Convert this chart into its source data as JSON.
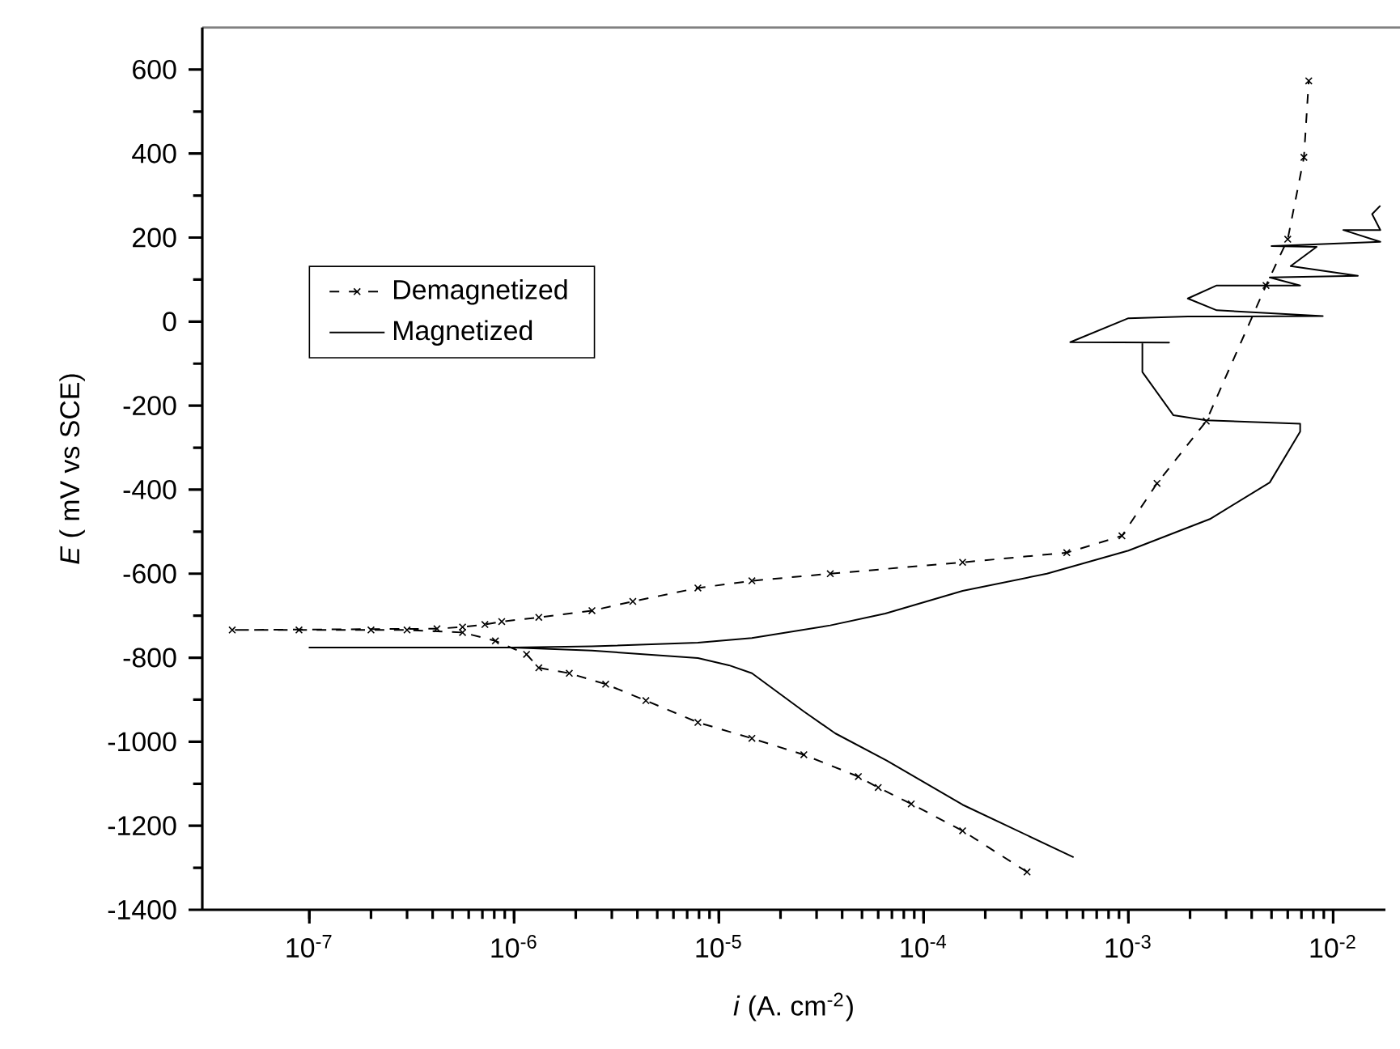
{
  "chart_data": {
    "type": "line",
    "xlabel": "*i* (A. cm$^{-2}$)",
    "ylabel": "*E* ( mV vs SCE)",
    "log": "x",
    "xlim": [
      3e-08,
      0.018
    ],
    "ylim": [
      -1400,
      700
    ],
    "xticks": [
      {
        "value": 1e-07,
        "label": "10$^{-7}$"
      },
      {
        "value": 1e-06,
        "label": "10$^{-6}$"
      },
      {
        "value": 1e-05,
        "label": "10$^{-5}$"
      },
      {
        "value": 0.0001,
        "label": "10$^{-4}$"
      },
      {
        "value": 0.001,
        "label": "10$^{-3}$"
      },
      {
        "value": 0.01,
        "label": "10$^{-2}$"
      }
    ],
    "yticks": [
      -1400,
      -1200,
      -1000,
      -800,
      -600,
      -400,
      -200,
      0,
      200,
      400,
      600
    ],
    "grid": false,
    "legend": "top left",
    "series": [
      {
        "name": "Demagnetized",
        "color": "#000000",
        "marker": "cross",
        "line_style": "dashed",
        "x": [
          0.00032,
          0.000155,
          8.7e-05,
          6e-05,
          4.8e-05,
          2.6e-05,
          1.45e-05,
          7.9e-06,
          4.4e-06,
          2.8e-06,
          1.86e-06,
          1.32e-06,
          1.15e-06,
          8.1e-07,
          5.6e-07,
          3e-07,
          2e-07,
          8.9e-08,
          4.2e-08,
          4.2e-07,
          5.6e-07,
          7.2e-07,
          8.7e-07,
          1.32e-06,
          2.4e-06,
          3.8e-06,
          7.9e-06,
          1.45e-05,
          3.5e-05,
          0.000155,
          0.0005,
          0.00093,
          0.00138,
          0.0024,
          0.0047,
          0.006,
          0.0072,
          0.0076
        ],
        "values": [
          -1310,
          -1212,
          -1148,
          -1109,
          -1083,
          -1031,
          -992,
          -954,
          -902,
          -863,
          -837,
          -824,
          -792,
          -760,
          -740,
          -734,
          -734,
          -734,
          -734,
          -731,
          -727,
          -721,
          -714,
          -704,
          -688,
          -666,
          -634,
          -617,
          -600,
          -573,
          -550,
          -510,
          -385,
          -237,
          86,
          196,
          391,
          573
        ]
      },
      {
        "name": "Magnetized",
        "color": "#000000",
        "marker": "none",
        "line_style": "solid",
        "x": [
          0.00054,
          0.000155,
          6.6e-05,
          3.7e-05,
          2.6e-05,
          1.45e-05,
          1.12e-05,
          7.9e-06,
          2.4e-06,
          9.8e-07,
          1e-07,
          9.8e-07,
          2.4e-06,
          7.9e-06,
          1.45e-05,
          3.5e-05,
          6.5e-05,
          0.000155,
          0.0004,
          0.001,
          0.0025,
          0.0049,
          0.0069,
          0.0069,
          0.0024,
          0.00166,
          0.00117,
          0.00117,
          0.00158,
          0.00052,
          0.001,
          0.00195,
          0.0089,
          0.0027,
          0.00195,
          0.0027,
          0.0069,
          0.0049,
          0.0132,
          0.0062,
          0.0083,
          0.005,
          0.017,
          0.0112,
          0.017,
          0.0155,
          0.017
        ],
        "values": [
          -1275,
          -1150,
          -1045,
          -980,
          -928,
          -837,
          -818,
          -801,
          -783,
          -776,
          -776,
          -776,
          -773,
          -764,
          -753,
          -723,
          -695,
          -641,
          -600,
          -545,
          -470,
          -383,
          -262,
          -243,
          -235,
          -223,
          -120,
          -50,
          -50,
          -49,
          8,
          12,
          13,
          27,
          55,
          86,
          86,
          105,
          109,
          132,
          178,
          180,
          190,
          218,
          218,
          256,
          276
        ]
      }
    ]
  }
}
